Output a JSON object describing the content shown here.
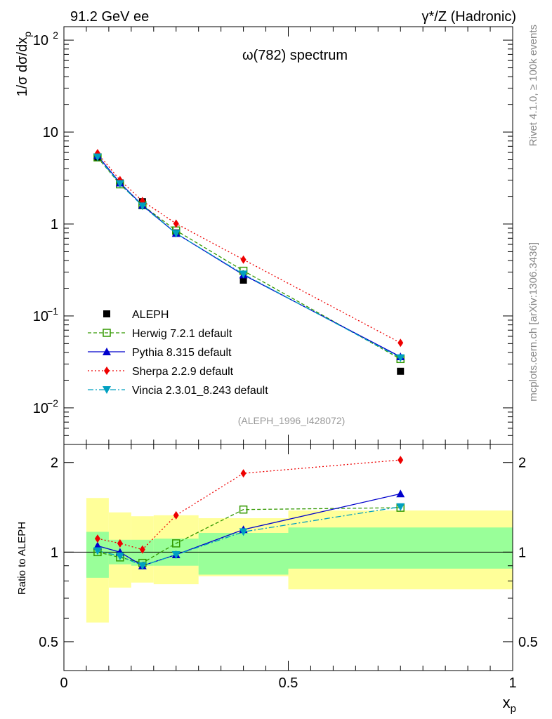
{
  "header": {
    "left": "91.2 GeV ee",
    "right": "γ*/Z (Hadronic)"
  },
  "side_labels": {
    "rivet": "Rivet 4.1.0, ≥ 100k events",
    "mcplots": "mcplots.cern.ch [arXiv:1306.3436]"
  },
  "chart_data": [
    {
      "type": "line",
      "scale": "log",
      "title": "ω(782) spectrum",
      "ylabel": "1/σ  dσ/dx_p",
      "xlim": [
        0,
        1
      ],
      "ylim": [
        0.004,
        140
      ],
      "y_ticks": [
        {
          "value": 0.01,
          "label": "10",
          "exp": "−2"
        },
        {
          "value": 0.1,
          "label": "10",
          "exp": "−1"
        },
        {
          "value": 1,
          "label": "1",
          "exp": ""
        },
        {
          "value": 10,
          "label": "10",
          "exp": ""
        },
        {
          "value": 100,
          "label": "10",
          "exp": "2"
        }
      ],
      "watermark": "(ALEPH_1996_I428072)",
      "x": [
        0.075,
        0.125,
        0.175,
        0.25,
        0.4,
        0.75
      ],
      "series": [
        {
          "name": "ALEPH",
          "color": "#000000",
          "marker": "square-filled",
          "values": [
            5.3,
            2.8,
            1.75,
            0.8,
            0.245,
            0.025
          ]
        },
        {
          "name": "Herwig 7.2.1 default",
          "color": "#339900",
          "marker": "square-open",
          "dash": "5,3",
          "values": [
            5.3,
            2.7,
            1.6,
            0.85,
            0.31,
            0.034
          ]
        },
        {
          "name": "Pythia 8.315 default",
          "color": "#0000cc",
          "marker": "triangle-up",
          "dash": "",
          "values": [
            5.55,
            2.8,
            1.6,
            0.79,
            0.28,
            0.036
          ]
        },
        {
          "name": "Sherpa 2.2.9 default",
          "color": "#ee0000",
          "marker": "diamond",
          "dash": "2,3",
          "values": [
            5.9,
            3.0,
            1.78,
            1.01,
            0.41,
            0.051
          ]
        },
        {
          "name": "Vincia 2.3.01_8.243 default",
          "color": "#00a0c0",
          "marker": "triangle-down",
          "dash": "8,3,2,3",
          "values": [
            5.35,
            2.75,
            1.57,
            0.79,
            0.285,
            0.035
          ]
        }
      ]
    },
    {
      "type": "line",
      "ylabel": "Ratio to ALEPH",
      "xlabel": "x_p",
      "xlim": [
        0,
        1
      ],
      "ylim": [
        0.4,
        2.3
      ],
      "y_tick_labels": [
        "0.5",
        "1",
        "2"
      ],
      "x_tick_labels": [
        "0",
        "0.5",
        "1"
      ],
      "x": [
        0.075,
        0.125,
        0.175,
        0.25,
        0.4,
        0.75
      ],
      "bands": [
        {
          "x0": 0.05,
          "x1": 0.1,
          "stat": [
            0.82,
            1.17
          ],
          "total": [
            0.58,
            1.52
          ]
        },
        {
          "x0": 0.1,
          "x1": 0.15,
          "stat": [
            0.91,
            1.1
          ],
          "total": [
            0.76,
            1.36
          ]
        },
        {
          "x0": 0.15,
          "x1": 0.2,
          "stat": [
            0.9,
            1.1
          ],
          "total": [
            0.79,
            1.32
          ]
        },
        {
          "x0": 0.2,
          "x1": 0.3,
          "stat": [
            0.9,
            1.11
          ],
          "total": [
            0.78,
            1.33
          ]
        },
        {
          "x0": 0.3,
          "x1": 0.5,
          "stat": [
            0.84,
            1.16
          ],
          "total": [
            0.83,
            1.3
          ]
        },
        {
          "x0": 0.5,
          "x1": 1.0,
          "stat": [
            0.88,
            1.21
          ],
          "total": [
            0.75,
            1.38
          ]
        }
      ],
      "series": [
        {
          "name": "Herwig 7.2.1 default",
          "values": [
            1.0,
            0.96,
            0.92,
            1.07,
            1.39,
            1.41
          ]
        },
        {
          "name": "Pythia 8.315 default",
          "values": [
            1.05,
            1.0,
            0.9,
            0.98,
            1.19,
            1.57
          ]
        },
        {
          "name": "Sherpa 2.2.9 default",
          "values": [
            1.11,
            1.07,
            1.02,
            1.33,
            1.84,
            2.04
          ]
        },
        {
          "name": "Vincia 2.3.01_8.243 default",
          "values": [
            1.01,
            0.97,
            0.9,
            0.98,
            1.17,
            1.42
          ]
        }
      ]
    }
  ]
}
